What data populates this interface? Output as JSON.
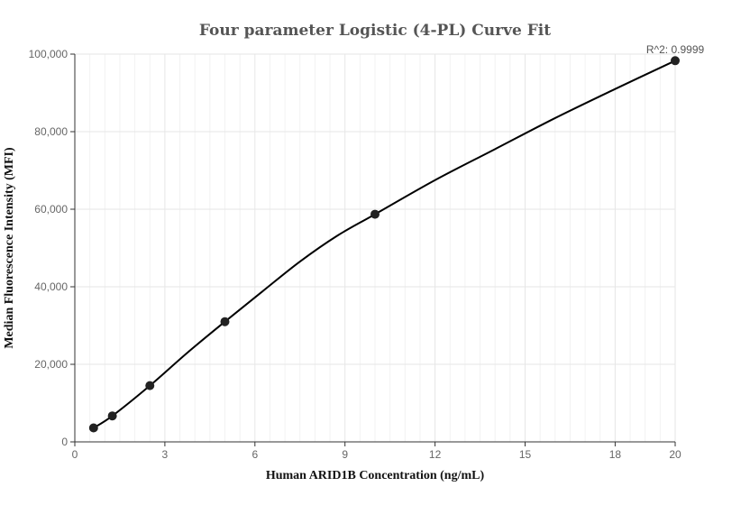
{
  "chart_data": {
    "type": "scatter",
    "title": "Four parameter Logistic (4-PL) Curve Fit",
    "xlabel": "Human ARID1B Concentration (ng/mL)",
    "ylabel": "Median Fluorescence Intensity (MFI)",
    "xlim": [
      0,
      20
    ],
    "ylim": [
      0,
      100000
    ],
    "x_ticks": [
      0,
      3,
      6,
      9,
      12,
      15,
      18,
      20
    ],
    "x_tick_labels": [
      "0",
      "3",
      "6",
      "9",
      "12",
      "15",
      "18",
      "20"
    ],
    "y_ticks": [
      0,
      20000,
      40000,
      60000,
      80000,
      100000
    ],
    "y_tick_labels": [
      "0",
      "20,000",
      "40,000",
      "60,000",
      "80,000",
      "100,000"
    ],
    "grid": true,
    "points": {
      "x": [
        0.625,
        1.25,
        2.5,
        5,
        10,
        20
      ],
      "y": [
        3600,
        6700,
        14500,
        31000,
        58700,
        98300
      ]
    },
    "fit_curve": {
      "x": [
        0.625,
        1.25,
        2.5,
        3.75,
        5,
        6.25,
        7.5,
        8.75,
        10,
        12,
        14,
        16,
        18,
        20
      ],
      "y": [
        3600,
        6700,
        14500,
        23000,
        31000,
        38800,
        46500,
        53200,
        58700,
        67500,
        75500,
        83500,
        91000,
        98300
      ]
    },
    "annotation": "R^2: 0.9999"
  }
}
